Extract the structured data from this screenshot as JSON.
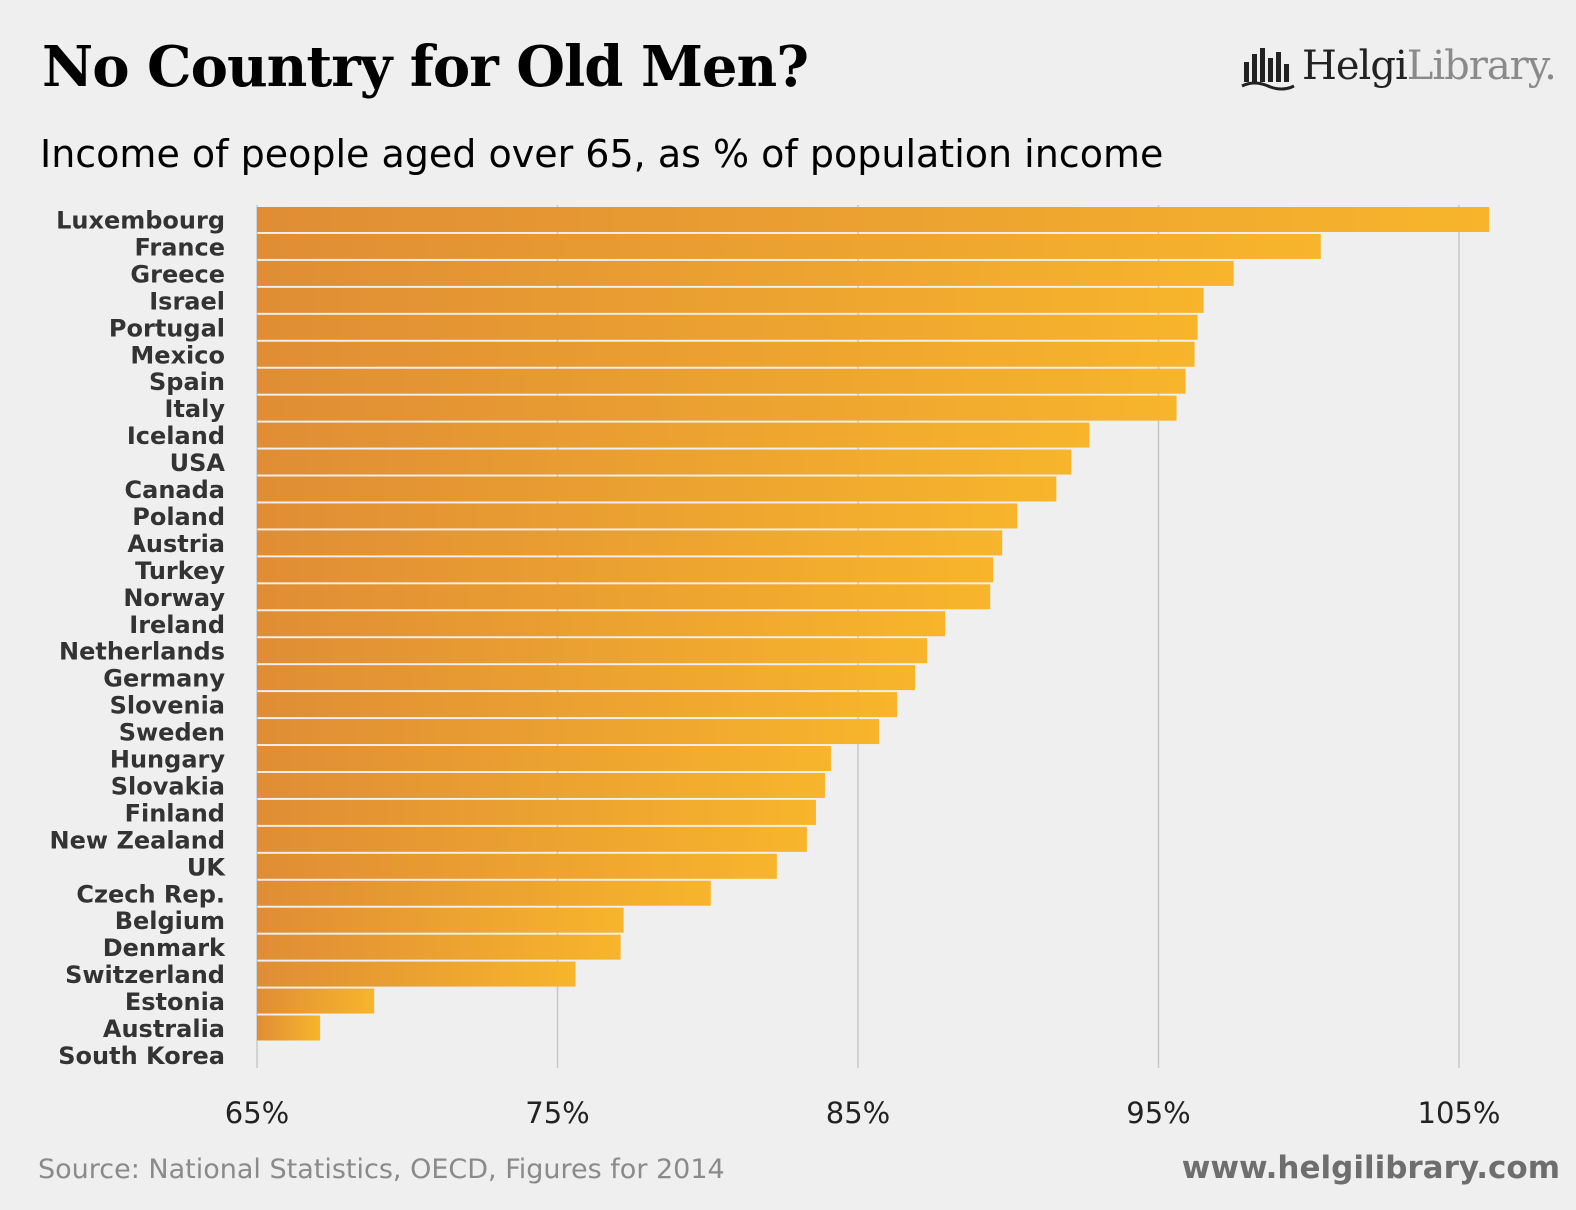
{
  "colors": {
    "background": "#efefef",
    "bar_start": "#e08d35",
    "bar_end": "#f7b52c",
    "gridline": "#c8c8c8",
    "label_text": "#333333",
    "tick_text": "#222222",
    "source_text": "#8a8a8a",
    "website_text": "#6e6e6e"
  },
  "logo": {
    "icon": "helgi-library-bars-icon",
    "name_dark": "Helgi",
    "name_light": "Library."
  },
  "footer": {
    "source": "Source: National Statistics, OECD, Figures for 2014",
    "website": "www.helgilibrary.com"
  },
  "chart_data": {
    "type": "bar",
    "orientation": "horizontal",
    "title": "No Country for Old Men?",
    "subtitle": "Income of people aged over 65, as % of population income",
    "xlabel": "",
    "ylabel": "",
    "xlim": [
      65,
      108
    ],
    "ticks": [
      65,
      75,
      85,
      95,
      105
    ],
    "tick_labels": [
      "65%",
      "75%",
      "85%",
      "95%",
      "105%"
    ],
    "grid": true,
    "legend": "none",
    "categories": [
      "Luxembourg",
      "France",
      "Greece",
      "Israel",
      "Portugal",
      "Mexico",
      "Spain",
      "Italy",
      "Iceland",
      "USA",
      "Canada",
      "Poland",
      "Austria",
      "Turkey",
      "Norway",
      "Ireland",
      "Netherlands",
      "Germany",
      "Slovenia",
      "Sweden",
      "Hungary",
      "Slovakia",
      "Finland",
      "New Zealand",
      "UK",
      "Czech Rep.",
      "Belgium",
      "Denmark",
      "Switzerland",
      "Estonia",
      "Australia",
      "South Korea"
    ],
    "values": [
      106.0,
      100.4,
      97.5,
      96.5,
      96.3,
      96.2,
      95.9,
      95.6,
      92.7,
      92.1,
      91.6,
      90.3,
      89.8,
      89.5,
      89.4,
      87.9,
      87.3,
      86.9,
      86.3,
      85.7,
      84.1,
      83.9,
      83.6,
      83.3,
      82.3,
      80.1,
      77.2,
      77.1,
      75.6,
      68.9,
      67.1,
      65.0
    ]
  }
}
